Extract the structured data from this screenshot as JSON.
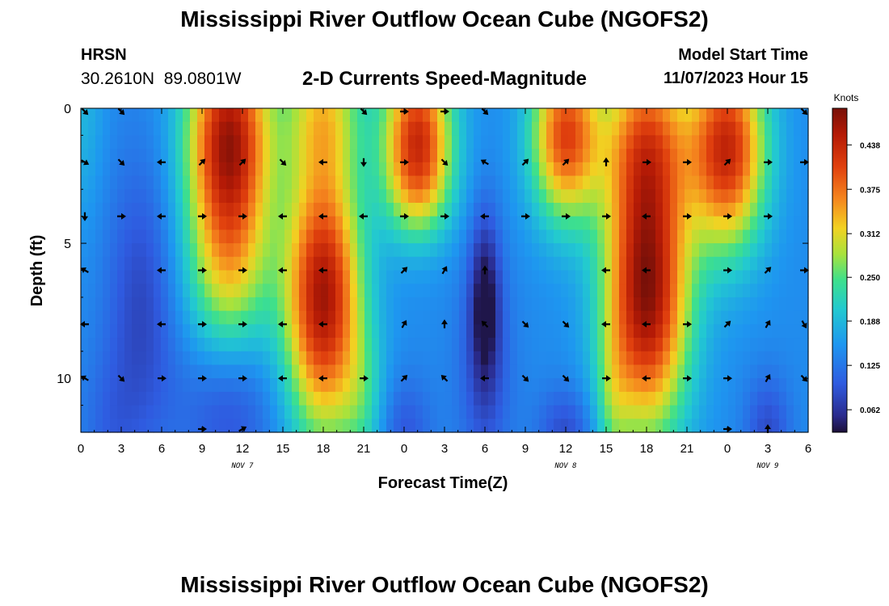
{
  "header": {
    "title": "Mississippi River Outflow Ocean Cube (NGOFS2)",
    "station": "HRSN",
    "coords": "30.2610N  89.0801W",
    "subtitle": "2-D Currents Speed-Magnitude",
    "model_start_label": "Model Start Time",
    "model_start_value": "11/07/2023 Hour 15"
  },
  "footer": {
    "title": "Mississippi River Outflow Ocean Cube (NGOFS2)"
  },
  "chart_data": {
    "type": "heatmap",
    "title": "2-D Currents Speed-Magnitude",
    "xlabel": "Forecast Time(Z)",
    "ylabel": "Depth (ft)",
    "xlim": [
      0,
      54
    ],
    "ylim": [
      0,
      12
    ],
    "x_unit": "hours from 2023-11-07 00Z",
    "x_ticks": [
      0,
      3,
      6,
      9,
      12,
      15,
      18,
      21,
      24,
      27,
      30,
      33,
      36,
      39,
      42,
      45,
      48,
      51,
      54
    ],
    "x_tick_labels": [
      "0",
      "3",
      "6",
      "9",
      "12",
      "15",
      "18",
      "21",
      "0",
      "3",
      "6",
      "9",
      "12",
      "15",
      "18",
      "21",
      "0",
      "3",
      "6"
    ],
    "y_ticks": [
      0,
      5,
      10
    ],
    "y_tick_labels": [
      "0",
      "5",
      "10"
    ],
    "date_labels": [
      {
        "x": 12,
        "label": "NOV 7"
      },
      {
        "x": 36,
        "label": "NOV 8"
      },
      {
        "x": 51,
        "label": "NOV 9"
      }
    ],
    "colorbar": {
      "label": "Knots",
      "min": 0.03,
      "max": 0.49,
      "ticks": [
        0.062,
        0.125,
        0.188,
        0.25,
        0.312,
        0.375,
        0.438
      ],
      "tick_labels": [
        "0.062",
        "0.125",
        "0.188",
        "0.250",
        "0.312",
        "0.375",
        "0.438"
      ]
    },
    "arrow_times": [
      0,
      3,
      6,
      9,
      12,
      15,
      18,
      21,
      24,
      27,
      30,
      33,
      36,
      39,
      42,
      45,
      48,
      51,
      54
    ],
    "arrow_depths": [
      0,
      2,
      4,
      6,
      8,
      10,
      12
    ],
    "arrow_angles_deg": [
      [
        -45,
        -45,
        0,
        0,
        0,
        0,
        0,
        -45,
        0,
        0,
        -45,
        0,
        0,
        0,
        0,
        0,
        0,
        0,
        -45
      ],
      [
        -30,
        -45,
        180,
        45,
        45,
        -45,
        180,
        -90,
        0,
        -45,
        150,
        45,
        45,
        90,
        0,
        0,
        45,
        0,
        0
      ],
      [
        -90,
        0,
        180,
        0,
        0,
        180,
        180,
        180,
        0,
        0,
        180,
        0,
        0,
        0,
        180,
        0,
        0,
        0,
        0
      ],
      [
        150,
        0,
        180,
        0,
        0,
        180,
        180,
        0,
        45,
        60,
        90,
        0,
        0,
        180,
        180,
        0,
        0,
        45,
        0
      ],
      [
        180,
        180,
        180,
        0,
        0,
        180,
        180,
        0,
        60,
        90,
        135,
        -45,
        -45,
        180,
        180,
        0,
        45,
        60,
        -60
      ],
      [
        150,
        -45,
        0,
        0,
        0,
        180,
        180,
        0,
        45,
        135,
        180,
        -45,
        -45,
        0,
        180,
        0,
        0,
        60,
        -45
      ],
      [
        0,
        0,
        0,
        0,
        30,
        0,
        0,
        0,
        0,
        0,
        0,
        0,
        0,
        0,
        0,
        0,
        0,
        90,
        0
      ]
    ],
    "arrow_shown": [
      [
        1,
        1,
        0,
        0,
        0,
        0,
        0,
        1,
        1,
        1,
        1,
        0,
        0,
        0,
        0,
        0,
        0,
        0,
        1
      ],
      [
        1,
        1,
        1,
        1,
        1,
        1,
        1,
        1,
        1,
        1,
        1,
        1,
        1,
        1,
        1,
        1,
        1,
        1,
        1
      ],
      [
        1,
        1,
        1,
        1,
        1,
        1,
        1,
        1,
        1,
        1,
        1,
        1,
        1,
        1,
        1,
        1,
        1,
        1,
        0
      ],
      [
        1,
        0,
        1,
        1,
        1,
        1,
        1,
        0,
        1,
        1,
        1,
        0,
        0,
        1,
        1,
        0,
        1,
        1,
        1
      ],
      [
        1,
        0,
        1,
        1,
        1,
        1,
        1,
        0,
        1,
        1,
        1,
        1,
        1,
        1,
        1,
        1,
        1,
        1,
        1
      ],
      [
        1,
        1,
        1,
        1,
        1,
        1,
        1,
        1,
        1,
        1,
        1,
        1,
        1,
        1,
        1,
        1,
        1,
        1,
        1
      ],
      [
        0,
        0,
        0,
        1,
        1,
        0,
        0,
        0,
        0,
        0,
        0,
        0,
        0,
        0,
        0,
        0,
        1,
        1,
        0
      ]
    ]
  }
}
